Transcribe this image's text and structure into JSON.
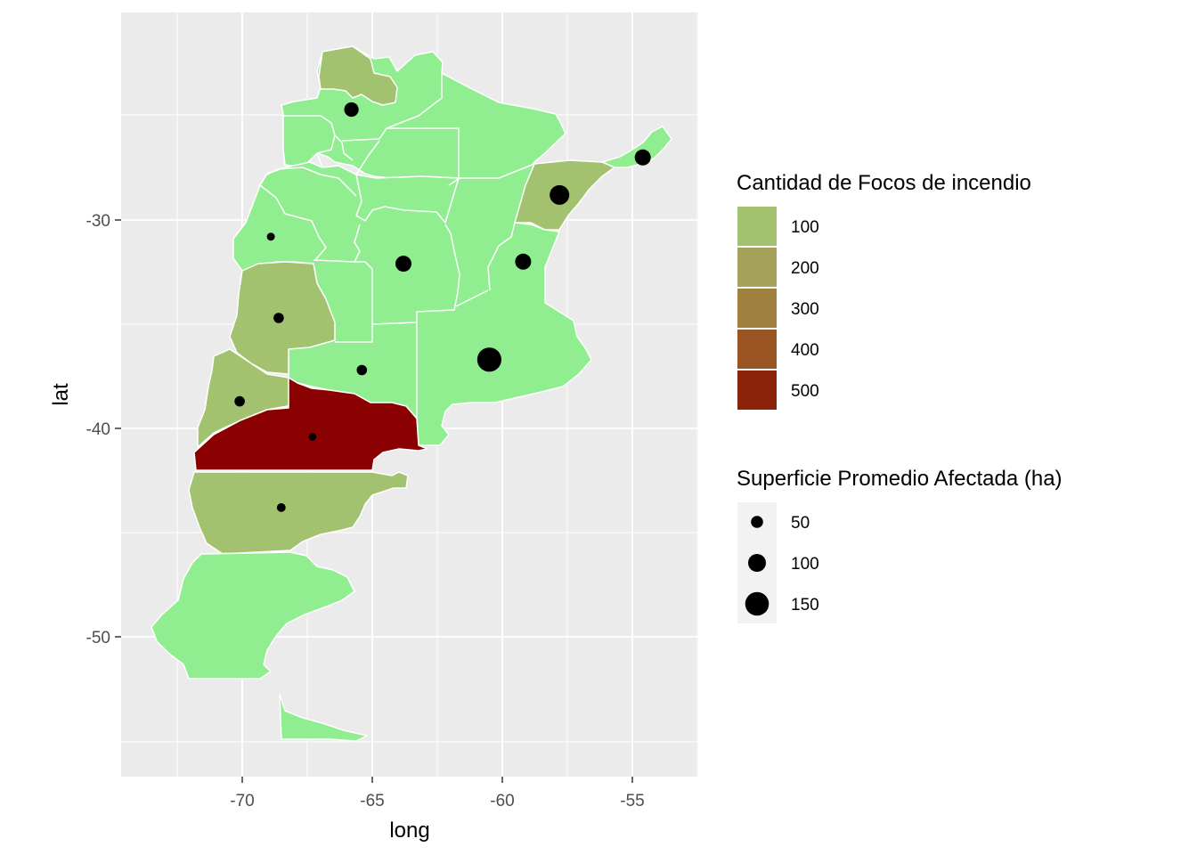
{
  "map": {
    "x_axis": {
      "title": "long",
      "ticks": [
        "-70",
        "-65",
        "-60",
        "-55"
      ],
      "tick_values": [
        -70,
        -65,
        -60,
        -55
      ]
    },
    "y_axis": {
      "title": "lat",
      "ticks": [
        "-30",
        "-40",
        "-50"
      ],
      "tick_values": [
        -30,
        -40,
        -50
      ]
    },
    "colors": {
      "panel_background": "#ebebeb",
      "grid": "#ffffff",
      "province_border": "#ffffff",
      "base_fill": "#90ee90",
      "point": "#000000"
    }
  },
  "legend_fill": {
    "title": "Cantidad de Focos de incendio",
    "items": [
      {
        "label": "100",
        "color": "#a3c26f"
      },
      {
        "label": "200",
        "color": "#a6a25c"
      },
      {
        "label": "300",
        "color": "#a0803e"
      },
      {
        "label": "400",
        "color": "#9a5523"
      },
      {
        "label": "500",
        "color": "#8b220a"
      }
    ]
  },
  "legend_size": {
    "title": "Superficie Promedio Afectada (ha)",
    "items": [
      {
        "label": "50",
        "value": 50
      },
      {
        "label": "100",
        "value": 100
      },
      {
        "label": "150",
        "value": 150
      }
    ]
  },
  "chart_data": {
    "type": "map",
    "xlabel": "long",
    "ylabel": "lat",
    "fill_scale": {
      "title": "Cantidad de Focos de incendio",
      "breaks": [
        100,
        200,
        300,
        400,
        500
      ]
    },
    "size_scale": {
      "title": "Superficie Promedio Afectada (ha)",
      "breaks": [
        50,
        100,
        150
      ]
    },
    "points": [
      {
        "long": -65.8,
        "lat": -24.7,
        "size": 70
      },
      {
        "long": -54.6,
        "lat": -27.0,
        "size": 85
      },
      {
        "long": -57.8,
        "lat": -28.8,
        "size": 115
      },
      {
        "long": -68.9,
        "lat": -30.8,
        "size": 15
      },
      {
        "long": -63.8,
        "lat": -32.1,
        "size": 85
      },
      {
        "long": -59.2,
        "lat": -32.0,
        "size": 85
      },
      {
        "long": -68.6,
        "lat": -34.7,
        "size": 35
      },
      {
        "long": -65.4,
        "lat": -37.2,
        "size": 35
      },
      {
        "long": -60.5,
        "lat": -36.7,
        "size": 155
      },
      {
        "long": -70.1,
        "lat": -38.7,
        "size": 35
      },
      {
        "long": -67.3,
        "lat": -40.4,
        "size": 12
      },
      {
        "long": -68.5,
        "lat": -43.8,
        "size": 22
      }
    ]
  }
}
